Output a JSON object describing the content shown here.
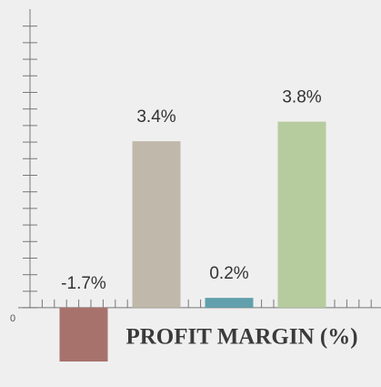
{
  "chart_data": {
    "type": "bar",
    "title": "PROFIT MARGIN (%)",
    "categories": [
      null,
      null,
      null,
      null
    ],
    "values": [
      -1.7,
      3.4,
      0.2,
      3.8
    ],
    "value_labels": [
      "-1.7%",
      "3.4%",
      "0.2%",
      "3.8%"
    ],
    "colors": [
      "#a8726c",
      "#c0b8ab",
      "#62a0ad",
      "#b6cc9e"
    ],
    "ylim": [
      -1.1,
      6.1
    ],
    "yticks": [
      0
    ],
    "grid": false
  }
}
